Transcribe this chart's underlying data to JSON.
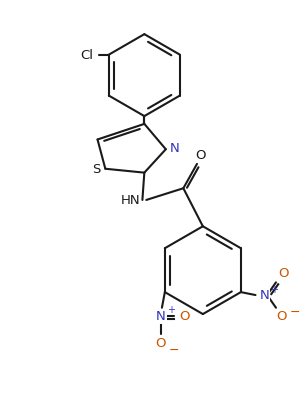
{
  "bg_color": "#ffffff",
  "line_color": "#1a1a1a",
  "N_color": "#3333bb",
  "O_color": "#cc5500",
  "lw": 1.5,
  "fs": 9.5,
  "figsize": [
    3.0,
    3.96
  ],
  "dpi": 100,
  "xlim": [
    0,
    300
  ],
  "ylim": [
    0,
    396
  ]
}
